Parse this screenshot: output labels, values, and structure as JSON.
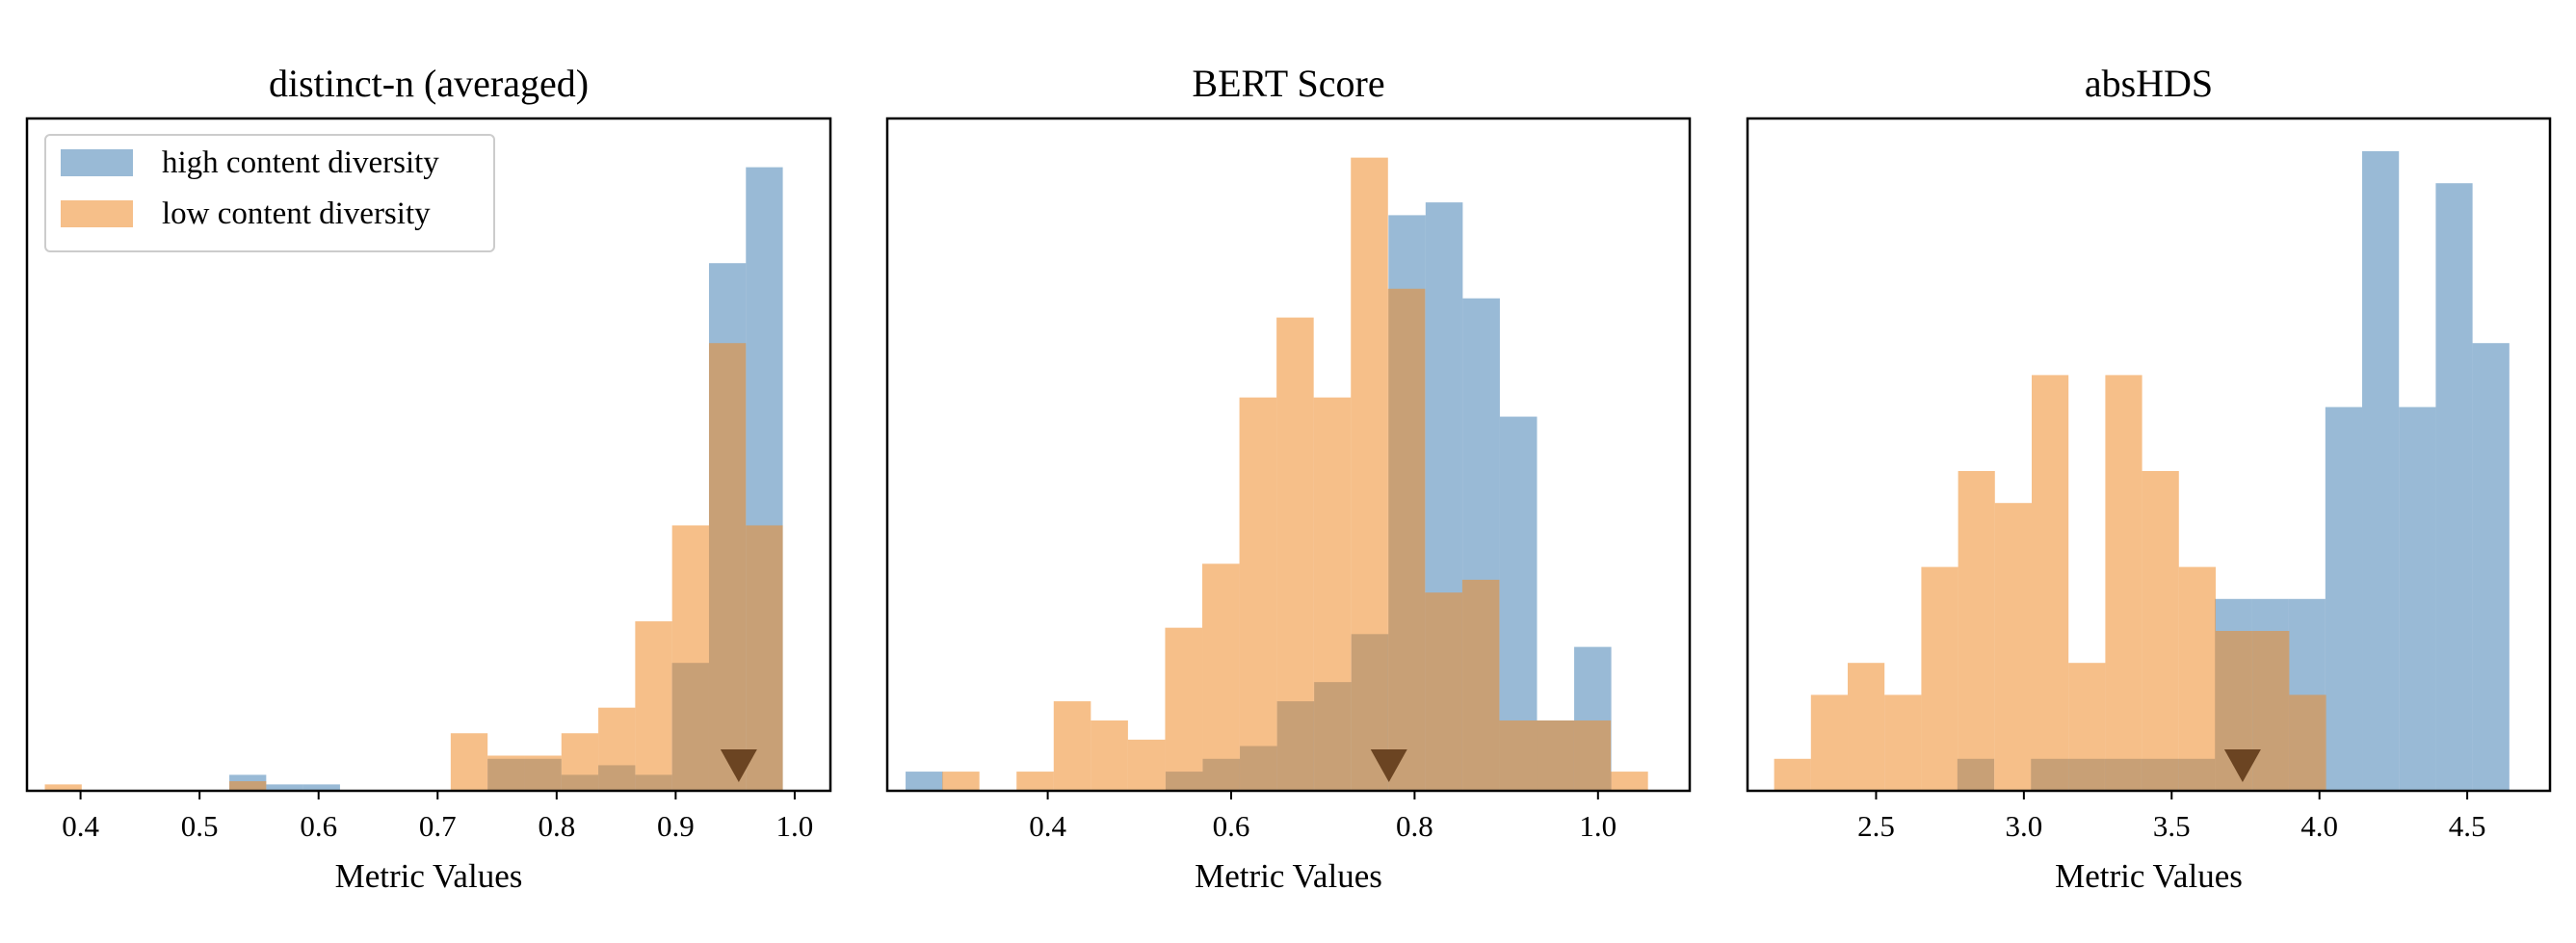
{
  "figure": {
    "legend": {
      "placement": "top-left",
      "entries": [
        {
          "label": "high content diversity",
          "color": "#4682b4",
          "opacity": 0.55
        },
        {
          "label": "low content diversity",
          "color": "#ee8a28",
          "opacity": 0.55
        }
      ]
    },
    "marker": {
      "shape": "downward-triangle",
      "color": "#6b4422"
    }
  },
  "chart_data": [
    {
      "type": "histogram",
      "title": "distinct-n (averaged)",
      "xlabel": "Metric Values",
      "ylabel": "",
      "xlim": [
        0.355,
        1.03
      ],
      "ylim": [
        0,
        20
      ],
      "xticks": [
        0.4,
        0.5,
        0.6,
        0.7,
        0.8,
        0.9,
        1.0
      ],
      "xtick_labels": [
        "0.4",
        "0.5",
        "0.6",
        "0.7",
        "0.8",
        "0.9",
        "1.0"
      ],
      "yticks_shown": false,
      "grid": false,
      "legend_shown": true,
      "series": [
        {
          "name": "high content diversity",
          "color": "#4682b4",
          "bin_edges": [
            0.525,
            0.556,
            0.587,
            0.618,
            0.649,
            0.68,
            0.711,
            0.742,
            0.773,
            0.804,
            0.835,
            0.866,
            0.897,
            0.928,
            0.959,
            0.99
          ],
          "counts": [
            0.5,
            0.2,
            0.2,
            0,
            0,
            0,
            0,
            1,
            1,
            0.5,
            0.8,
            0.5,
            4,
            16.5,
            19.5
          ]
        },
        {
          "name": "low content diversity",
          "color": "#ee8a28",
          "bin_edges": [
            0.37,
            0.401,
            0.432,
            0.463,
            0.494,
            0.525,
            0.556,
            0.587,
            0.618,
            0.649,
            0.68,
            0.711,
            0.742,
            0.773,
            0.804,
            0.835,
            0.866,
            0.897,
            0.928,
            0.959,
            0.99
          ],
          "counts": [
            0.2,
            0,
            0,
            0,
            0,
            0.3,
            0,
            0,
            0,
            0,
            0,
            1.8,
            1.1,
            1.1,
            1.8,
            2.6,
            5.3,
            8.3,
            14,
            8.3
          ]
        }
      ],
      "marker_x": 0.953
    },
    {
      "type": "histogram",
      "title": "BERT Score",
      "xlabel": "Metric Values",
      "ylabel": "",
      "xlim": [
        0.225,
        1.1
      ],
      "ylim": [
        0,
        20
      ],
      "xticks": [
        0.4,
        0.6,
        0.8,
        1.0
      ],
      "xtick_labels": [
        "0.4",
        "0.6",
        "0.8",
        "1.0"
      ],
      "yticks_shown": false,
      "grid": false,
      "legend_shown": false,
      "series": [
        {
          "name": "high content diversity",
          "color": "#4682b4",
          "bin_edges": [
            0.245,
            0.2855,
            0.326,
            0.3665,
            0.407,
            0.4475,
            0.488,
            0.5285,
            0.569,
            0.6095,
            0.65,
            0.6905,
            0.731,
            0.7715,
            0.812,
            0.8525,
            0.893,
            0.9335,
            0.974,
            1.0145
          ],
          "counts": [
            0.6,
            0,
            0,
            0,
            0,
            0,
            0,
            0.6,
            1,
            1.4,
            2.8,
            3.4,
            4.9,
            18,
            18.4,
            15.4,
            11.7,
            2.2,
            4.5
          ]
        },
        {
          "name": "low content diversity",
          "color": "#ee8a28",
          "bin_edges": [
            0.285,
            0.3255,
            0.366,
            0.4065,
            0.447,
            0.4875,
            0.528,
            0.5685,
            0.609,
            0.6495,
            0.69,
            0.7305,
            0.771,
            0.8115,
            0.852,
            0.8925,
            0.933,
            0.9735,
            1.014,
            1.0545
          ],
          "counts": [
            0.6,
            0,
            0.6,
            2.8,
            2.2,
            1.6,
            5.1,
            7.1,
            12.3,
            14.8,
            12.3,
            19.8,
            15.7,
            6.2,
            6.6,
            2.2,
            2.2,
            2.2,
            0.6
          ]
        }
      ],
      "marker_x": 0.772
    },
    {
      "type": "histogram",
      "title": "absHDS",
      "xlabel": "Metric Values",
      "ylabel": "",
      "xlim": [
        2.065,
        4.78
      ],
      "ylim": [
        0,
        20
      ],
      "xticks": [
        2.5,
        3.0,
        3.5,
        4.0,
        4.5
      ],
      "xtick_labels": [
        "2.5",
        "3.0",
        "3.5",
        "4.0",
        "4.5"
      ],
      "yticks_shown": false,
      "grid": false,
      "legend_shown": false,
      "series": [
        {
          "name": "high content diversity",
          "color": "#4682b4",
          "bin_edges": [
            2.775,
            2.8995,
            3.024,
            3.1485,
            3.273,
            3.3975,
            3.522,
            3.6465,
            3.771,
            3.8955,
            4.02,
            4.1445,
            4.269,
            4.3935,
            4.518,
            4.6425
          ],
          "counts": [
            1,
            0,
            1,
            1,
            1,
            1,
            1,
            6,
            6,
            6,
            12,
            20,
            12,
            19,
            14
          ]
        },
        {
          "name": "low content diversity",
          "color": "#ee8a28",
          "bin_edges": [
            2.155,
            2.2795,
            2.404,
            2.5285,
            2.653,
            2.7775,
            2.902,
            3.0265,
            3.151,
            3.2755,
            3.4,
            3.5245,
            3.649,
            3.7735,
            3.898,
            4.0225
          ],
          "counts": [
            1,
            3,
            4,
            3,
            7,
            10,
            9,
            13,
            4,
            13,
            10,
            7,
            5,
            5,
            3
          ]
        }
      ],
      "marker_x": 3.74
    }
  ]
}
